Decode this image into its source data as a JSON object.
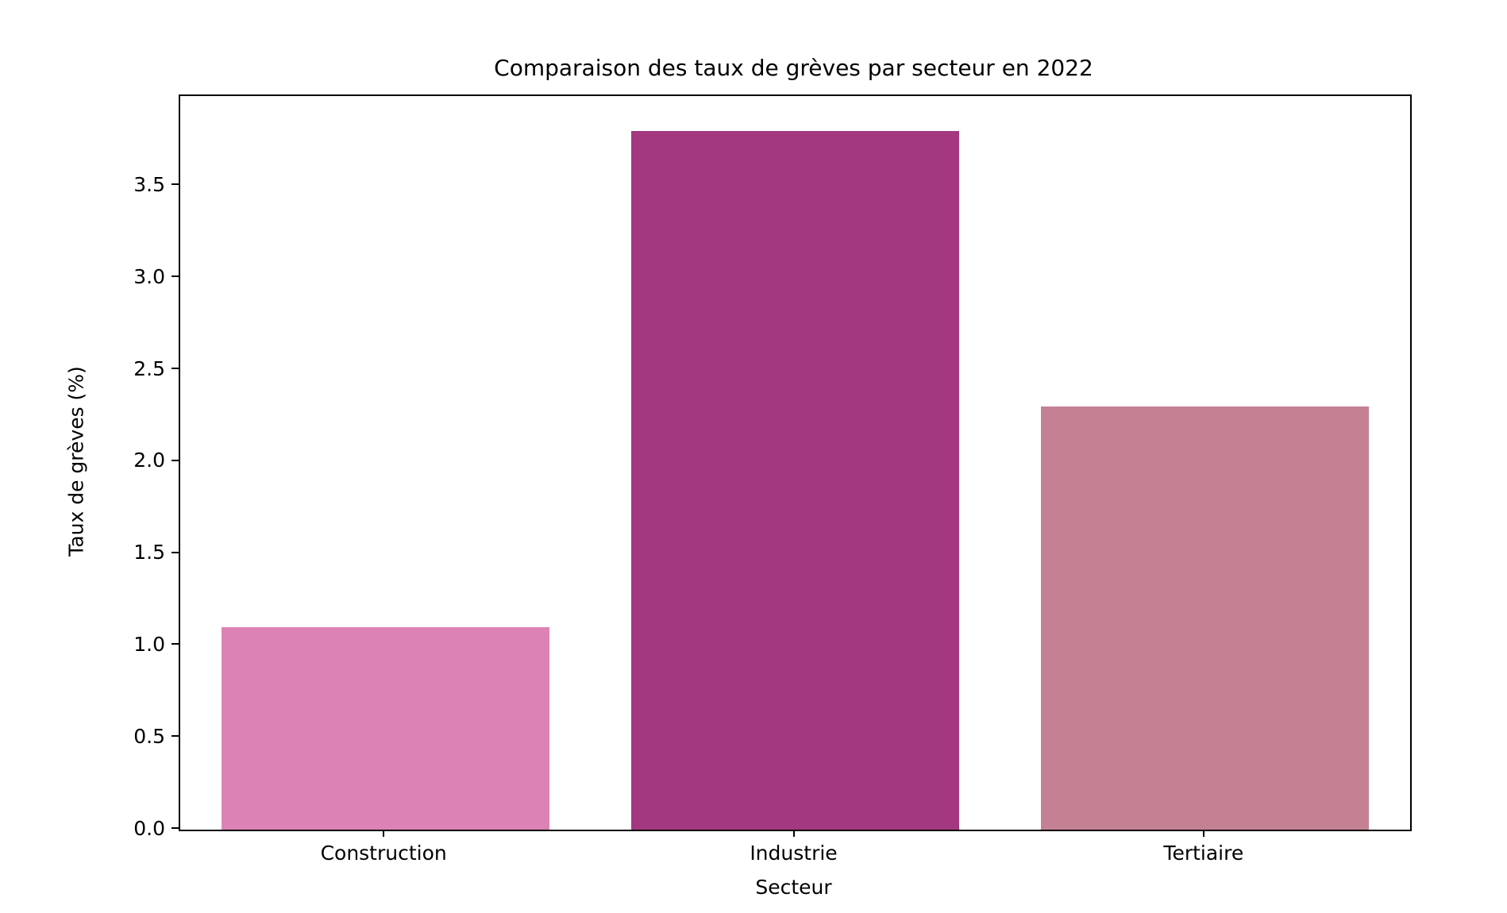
{
  "chart_data": {
    "type": "bar",
    "title": "Comparaison des taux de grèves par secteur en 2022",
    "xlabel": "Secteur",
    "ylabel": "Taux de grèves (%)",
    "categories": [
      "Construction",
      "Industrie",
      "Tertiaire"
    ],
    "values": [
      1.1,
      3.8,
      2.3
    ],
    "bar_colors": [
      "#DD82B5",
      "#A33880",
      "#C58194"
    ],
    "ylim": [
      0,
      3.99
    ],
    "yticks": [
      "0.0",
      "0.5",
      "1.0",
      "1.5",
      "2.0",
      "2.5",
      "3.0",
      "3.5"
    ],
    "grid": false,
    "legend_position": "none",
    "background_color": "#ffffff",
    "axis_color": "#000000"
  }
}
